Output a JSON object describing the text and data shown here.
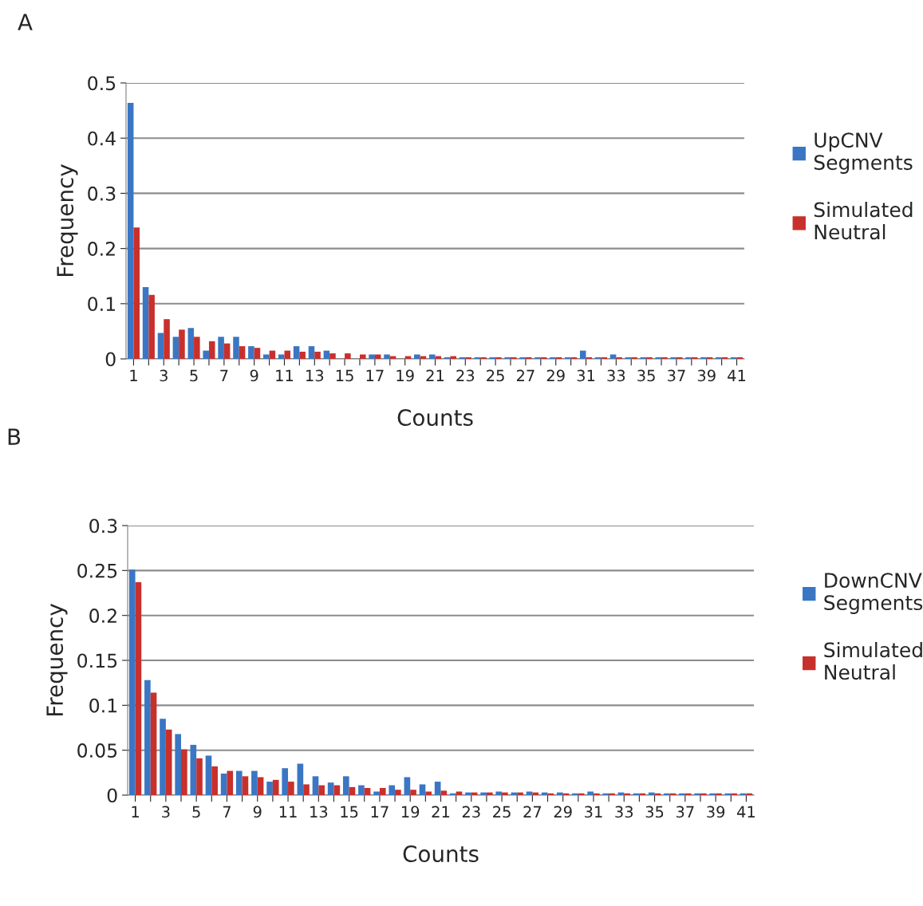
{
  "chart_data": [
    {
      "type": "bar",
      "xlabel": "Counts",
      "ylabel": "Frequency",
      "annotations": [
        "A"
      ],
      "categories": [
        "1",
        null,
        "3",
        null,
        "5",
        null,
        "7",
        null,
        "9",
        null,
        "11",
        null,
        "13",
        null,
        "15",
        null,
        "17",
        null,
        "19",
        null,
        "21",
        null,
        "23",
        null,
        "25",
        null,
        "27",
        null,
        "29",
        null,
        "31",
        null,
        "33",
        null,
        "35",
        null,
        "37",
        null,
        "39",
        null,
        "41"
      ],
      "series": [
        {
          "name": "UpCNV Segments",
          "color": "#3a76c4",
          "values": [
            0.464,
            0.13,
            0.047,
            0.04,
            0.056,
            0.015,
            0.04,
            0.04,
            0.023,
            0.008,
            0.008,
            0.023,
            0.023,
            0.015,
            0,
            0,
            0.008,
            0.008,
            0,
            0.008,
            0.008,
            0.003,
            0.003,
            0.003,
            0.003,
            0.003,
            0.003,
            0.003,
            0.003,
            0.003,
            0.015,
            0.003,
            0.008,
            0.003,
            0.003,
            0.003,
            0.003,
            0.003,
            0.003,
            0.003,
            0.003
          ]
        },
        {
          "name": "Simulated Neutral",
          "color": "#c8302c",
          "values": [
            0.238,
            0.116,
            0.072,
            0.053,
            0.04,
            0.032,
            0.028,
            0.023,
            0.02,
            0.015,
            0.015,
            0.013,
            0.013,
            0.01,
            0.01,
            0.008,
            0.008,
            0.005,
            0.005,
            0.005,
            0.005,
            0.005,
            0.003,
            0.003,
            0.003,
            0.003,
            0.003,
            0.003,
            0.003,
            0.003,
            0.003,
            0.003,
            0.003,
            0.003,
            0.003,
            0.003,
            0.003,
            0.003,
            0.003,
            0.003,
            0.003
          ]
        }
      ],
      "ylim": [
        0,
        0.5
      ],
      "yticks": [
        {
          "value": 0,
          "label": "0"
        },
        0.1,
        0.2,
        0.3,
        0.4,
        0.5
      ],
      "grid": "y",
      "legend": "right"
    },
    {
      "type": "bar",
      "xlabel": "Counts",
      "ylabel": "Frequency",
      "annotations": [
        "B"
      ],
      "categories": [
        "1",
        null,
        "3",
        null,
        "5",
        null,
        "7",
        null,
        "9",
        null,
        "11",
        null,
        "13",
        null,
        "15",
        null,
        "17",
        null,
        "19",
        null,
        "21",
        null,
        "23",
        null,
        "25",
        null,
        "27",
        null,
        "29",
        null,
        "31",
        null,
        "33",
        null,
        "35",
        null,
        "37",
        null,
        "39",
        null,
        "41"
      ],
      "series": [
        {
          "name": "DownCNV Segments",
          "color": "#3a76c4",
          "values": [
            0.251,
            0.128,
            0.085,
            0.068,
            0.056,
            0.044,
            0.024,
            0.027,
            0.027,
            0.015,
            0.03,
            0.035,
            0.021,
            0.014,
            0.021,
            0.011,
            0.004,
            0.011,
            0.02,
            0.012,
            0.015,
            0.002,
            0.003,
            0.003,
            0.004,
            0.003,
            0.004,
            0.003,
            0.003,
            0.002,
            0.004,
            0.002,
            0.003,
            0.002,
            0.003,
            0.002,
            0.002,
            0.002,
            0.002,
            0.002,
            0.002
          ]
        },
        {
          "name": "Simulated Neutral",
          "color": "#c8302c",
          "values": [
            0.237,
            0.114,
            0.073,
            0.051,
            0.041,
            0.032,
            0.027,
            0.021,
            0.02,
            0.017,
            0.015,
            0.012,
            0.011,
            0.011,
            0.009,
            0.008,
            0.008,
            0.006,
            0.006,
            0.004,
            0.005,
            0.004,
            0.003,
            0.003,
            0.003,
            0.003,
            0.003,
            0.002,
            0.002,
            0.002,
            0.002,
            0.002,
            0.002,
            0.002,
            0.002,
            0.002,
            0.002,
            0.002,
            0.002,
            0.002,
            0.002
          ]
        }
      ],
      "ylim": [
        0,
        0.3
      ],
      "yticks": [
        {
          "value": 0,
          "label": "0"
        },
        0.05,
        0.1,
        0.15,
        0.2,
        0.25,
        0.3
      ],
      "grid": "y",
      "legend": "right"
    }
  ]
}
